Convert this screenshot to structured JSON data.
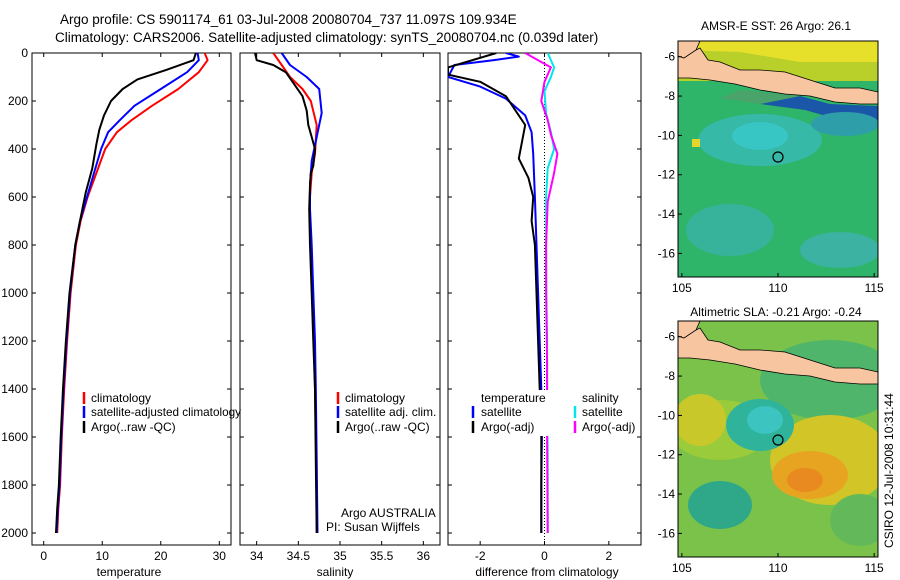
{
  "header": {
    "line1": "Argo profile: CS 5901174_61 03-Jul-2008 20080704_737 11.097S 109.934E",
    "line2": "Climatology: CARS2006. Satellite-adjusted climatology: synTS_20080704.nc (0.039d later)"
  },
  "stamp": "CSIRO 12-Jul-2008 10:31:44",
  "colors": {
    "climatology": "#ff0000",
    "satellite": "#0000ff",
    "argo": "#000000",
    "salinity_satellite": "#00e5ee",
    "salinity_argo": "#ff00ff",
    "land": "#f7c6a0"
  },
  "chart_data": [
    {
      "id": "temperature",
      "type": "line",
      "xlabel": "temperature",
      "ylabel": "",
      "xlim": [
        -2,
        32
      ],
      "ylim": [
        2050,
        0
      ],
      "xticks": [
        0,
        10,
        20,
        30
      ],
      "yticks": [
        0,
        200,
        400,
        600,
        800,
        1000,
        1200,
        1400,
        1600,
        1800,
        2000
      ],
      "legend_position": "lower-right",
      "series": [
        {
          "name": "climatology",
          "color": "#ff0000",
          "x": [
            27.5,
            28.0,
            26.5,
            23.0,
            18.5,
            15.0,
            12.5,
            10.5,
            9.0,
            7.5,
            6.3,
            5.5,
            4.6,
            4.0,
            3.5,
            3.1,
            2.8,
            2.5,
            2.3
          ],
          "y": [
            0,
            30,
            80,
            150,
            220,
            280,
            330,
            400,
            500,
            600,
            700,
            800,
            1000,
            1200,
            1400,
            1600,
            1800,
            1900,
            2000
          ]
        },
        {
          "name": "satellite-adjusted climatology",
          "color": "#0000ff",
          "x": [
            26.3,
            26.5,
            24.5,
            20.0,
            15.5,
            13.0,
            11.0,
            9.8,
            8.6,
            7.4,
            6.2,
            5.4,
            4.5,
            3.9,
            3.4,
            3.0,
            2.7,
            2.4,
            2.2
          ],
          "y": [
            0,
            30,
            80,
            150,
            220,
            280,
            330,
            400,
            500,
            600,
            700,
            800,
            1000,
            1200,
            1400,
            1600,
            1800,
            1900,
            2000
          ]
        },
        {
          "name": "Argo(..raw -QC)",
          "color": "#000000",
          "x": [
            26.0,
            25.6,
            21.0,
            16.0,
            13.5,
            11.5,
            10.3,
            9.5,
            9.0,
            8.3,
            7.2,
            6.2,
            5.4,
            4.4,
            3.8,
            3.3,
            2.9,
            2.6,
            2.3,
            2.1
          ],
          "y": [
            0,
            30,
            70,
            110,
            150,
            200,
            260,
            320,
            380,
            480,
            580,
            700,
            800,
            1000,
            1200,
            1400,
            1600,
            1800,
            1900,
            2000
          ]
        }
      ],
      "legend": [
        "climatology",
        "satellite-adjusted climatology",
        "Argo(..raw -QC)"
      ]
    },
    {
      "id": "salinity",
      "type": "line",
      "xlabel": "salinity",
      "ylabel": "",
      "xlim": [
        33.8,
        36.2
      ],
      "ylim": [
        2050,
        0
      ],
      "xticks": [
        34,
        34.5,
        35,
        35.5,
        36
      ],
      "annotation_line1": "Argo AUSTRALIA",
      "annotation_line2": "PI: Susan Wijffels",
      "legend_position": "lower-right",
      "series": [
        {
          "name": "climatology",
          "color": "#ff0000",
          "x": [
            34.2,
            34.3,
            34.4,
            34.55,
            34.65,
            34.72,
            34.7,
            34.66,
            34.64,
            34.64,
            34.65,
            34.67,
            34.69,
            34.7,
            34.71,
            34.72,
            34.72
          ],
          "y": [
            0,
            50,
            100,
            150,
            200,
            300,
            420,
            500,
            600,
            700,
            800,
            1000,
            1200,
            1400,
            1600,
            1800,
            2000
          ]
        },
        {
          "name": "satellite adj. clim.",
          "color": "#0000ff",
          "x": [
            34.3,
            34.4,
            34.6,
            34.75,
            34.78,
            34.72,
            34.66,
            34.64,
            34.64,
            34.66,
            34.68,
            34.7,
            34.71,
            34.72,
            34.73
          ],
          "y": [
            0,
            50,
            100,
            150,
            250,
            350,
            450,
            550,
            650,
            800,
            1000,
            1200,
            1400,
            1700,
            2000
          ]
        },
        {
          "name": "Argo(..raw -QC)",
          "color": "#000000",
          "x": [
            33.98,
            34.0,
            34.2,
            34.35,
            34.45,
            34.55,
            34.6,
            34.62,
            34.66,
            34.7,
            34.68,
            34.65,
            34.64,
            34.63,
            34.64,
            34.66,
            34.68,
            34.7,
            34.71,
            34.72
          ],
          "y": [
            0,
            30,
            50,
            80,
            130,
            180,
            240,
            300,
            350,
            400,
            470,
            500,
            550,
            650,
            800,
            1000,
            1200,
            1400,
            1700,
            2000
          ]
        }
      ],
      "legend": [
        "climatology",
        "satellite adj. clim.",
        "Argo(..raw -QC)"
      ]
    },
    {
      "id": "difference",
      "type": "line",
      "xlabel": "difference from climatology",
      "ylabel": "",
      "xlim": [
        -3,
        3
      ],
      "ylim": [
        2050,
        0
      ],
      "xticks": [
        -2,
        0,
        2
      ],
      "legend_position": "lower-right",
      "legend_headers": [
        "temperature",
        "salinity"
      ],
      "series": [
        {
          "name": "satellite",
          "group": "temperature",
          "color": "#0000ff",
          "x": [
            -1.2,
            -0.8,
            -1.6,
            -2.8,
            -3.0,
            -2.0,
            -1.2,
            -0.6,
            -0.4,
            -0.35,
            -0.3,
            -0.25,
            -0.2,
            -0.15,
            -0.1,
            -0.08,
            -0.1,
            -0.1
          ],
          "y": [
            0,
            15,
            30,
            50,
            100,
            140,
            190,
            260,
            330,
            420,
            600,
            800,
            1000,
            1200,
            1400,
            1600,
            1800,
            2000
          ]
        },
        {
          "name": "Argo(-adj)",
          "group": "temperature",
          "color": "#000000",
          "x": [
            -1.5,
            -3.0,
            -3.0,
            -2.0,
            -1.2,
            -0.6,
            -0.8,
            -0.5,
            -0.35,
            -0.4,
            -0.3,
            -0.25,
            -0.2,
            -0.15,
            -0.1,
            -0.1,
            -0.1
          ],
          "y": [
            0,
            60,
            90,
            120,
            180,
            300,
            440,
            520,
            600,
            700,
            800,
            1000,
            1200,
            1400,
            1600,
            1800,
            2000
          ]
        },
        {
          "name": "satellite",
          "group": "salinity",
          "color": "#00e5ee",
          "x": [
            0.1,
            0.3,
            0.2,
            0.0,
            0.05,
            0.2,
            0.3,
            0.1,
            0.05,
            0.05,
            0.06,
            0.08,
            0.08,
            0.1,
            0.1
          ],
          "y": [
            0,
            60,
            100,
            160,
            250,
            330,
            400,
            480,
            600,
            800,
            1000,
            1200,
            1400,
            1700,
            2000
          ]
        },
        {
          "name": "Argo(-adj)",
          "group": "salinity",
          "color": "#ff00ff",
          "x": [
            -0.6,
            0.2,
            0.0,
            -0.1,
            0.1,
            0.2,
            0.4,
            0.3,
            0.1,
            0.05,
            0.05,
            0.08,
            0.08,
            0.1
          ],
          "y": [
            0,
            60,
            120,
            200,
            280,
            340,
            420,
            500,
            620,
            800,
            1000,
            1300,
            1600,
            2000
          ]
        }
      ],
      "legend": [
        "satellite",
        "Argo(-adj)",
        "satellite",
        "Argo(-adj)"
      ]
    },
    {
      "id": "sst_map",
      "type": "heatmap",
      "title": "AMSR-E SST: 26 Argo: 26.1",
      "xlim": [
        104.8,
        115.2
      ],
      "ylim": [
        -17.2,
        -5.2
      ],
      "xticks": [
        105,
        110,
        115
      ],
      "yticks": [
        -6,
        -8,
        -10,
        -12,
        -14,
        -16
      ],
      "marker": {
        "lon": 109.934,
        "lat": -11.097
      }
    },
    {
      "id": "sla_map",
      "type": "heatmap",
      "title": "Altimetric SLA: -0.21 Argo: -0.24",
      "xlim": [
        104.8,
        115.2
      ],
      "ylim": [
        -17.2,
        -5.2
      ],
      "xticks": [
        105,
        110,
        115
      ],
      "yticks": [
        -6,
        -8,
        -10,
        -12,
        -14,
        -16
      ],
      "marker": {
        "lon": 109.934,
        "lat": -11.097
      }
    }
  ]
}
